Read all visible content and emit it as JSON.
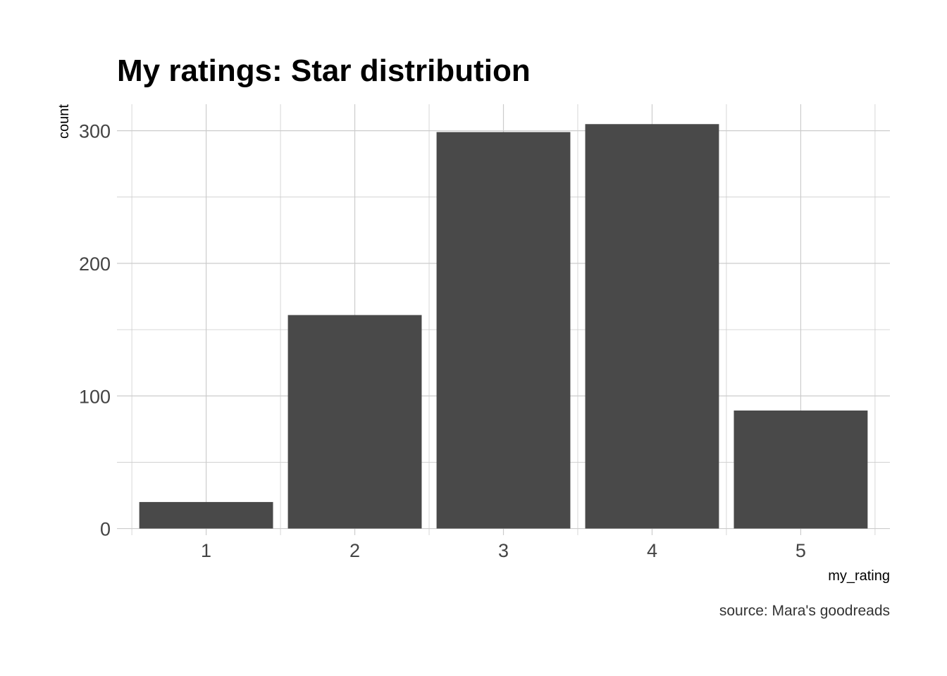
{
  "chart_data": {
    "type": "bar",
    "title": "My ratings: Star distribution",
    "xlabel": "my_rating",
    "ylabel": "count",
    "caption": "source: Mara's goodreads",
    "categories": [
      "1",
      "2",
      "3",
      "4",
      "5"
    ],
    "values": [
      20,
      161,
      299,
      305,
      89
    ],
    "yticks": [
      0,
      100,
      200,
      300
    ],
    "ylim": [
      -5,
      320
    ],
    "grid": true,
    "bar_color": "#494949",
    "grid_color": "#cccccc"
  }
}
